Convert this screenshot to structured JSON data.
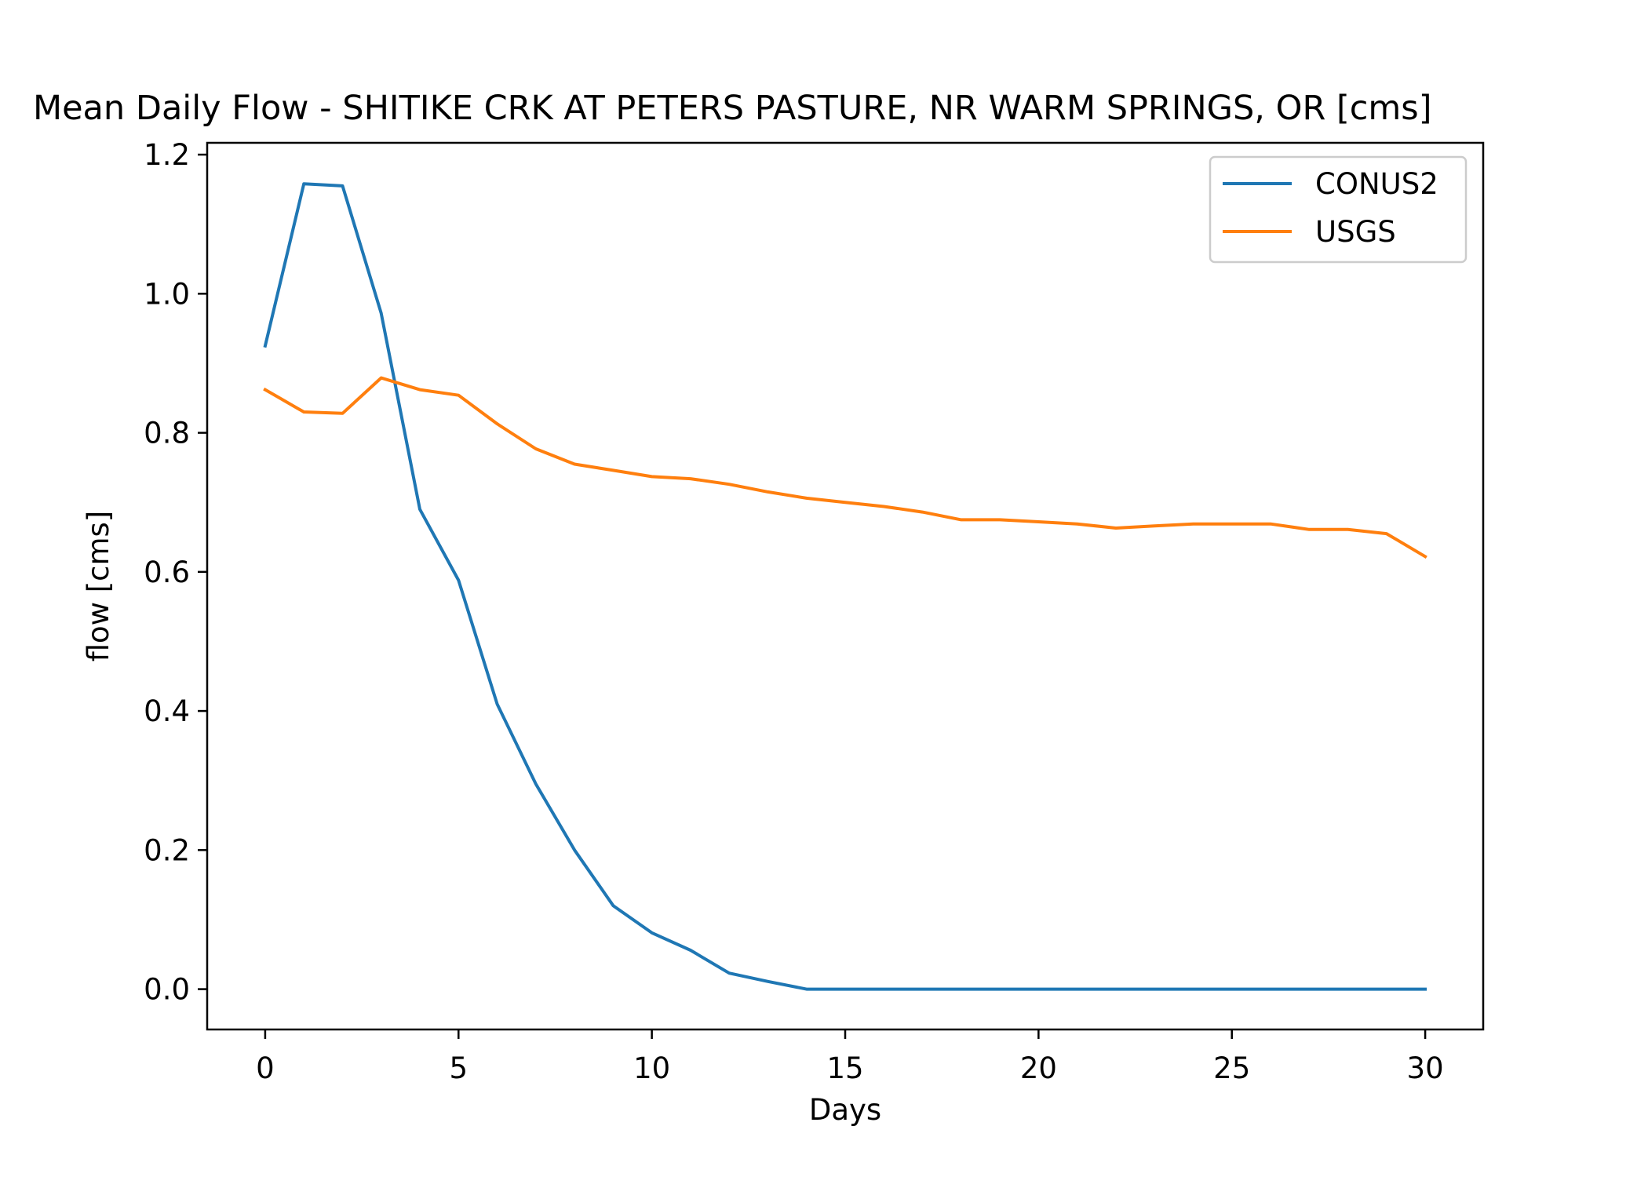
{
  "chart_data": {
    "type": "line",
    "title": "Mean Daily Flow - SHITIKE CRK AT PETERS PASTURE, NR WARM SPRINGS, OR [cms]",
    "xlabel": "Days",
    "ylabel": "flow [cms]",
    "xlim": [
      -1.5,
      31.5
    ],
    "ylim": [
      -0.058,
      1.217
    ],
    "xticks": [
      0,
      5,
      10,
      15,
      20,
      25,
      30
    ],
    "xtick_labels": [
      "0",
      "5",
      "10",
      "15",
      "20",
      "25",
      "30"
    ],
    "yticks": [
      0.0,
      0.2,
      0.4,
      0.6,
      0.8,
      1.0,
      1.2
    ],
    "ytick_labels": [
      "0.0",
      "0.2",
      "0.4",
      "0.6",
      "0.8",
      "1.0",
      "1.2"
    ],
    "grid": false,
    "legend_position": "upper-right",
    "x": [
      0,
      1,
      2,
      3,
      4,
      5,
      6,
      7,
      8,
      9,
      10,
      11,
      12,
      13,
      14,
      15,
      16,
      17,
      18,
      19,
      20,
      21,
      22,
      23,
      24,
      25,
      26,
      27,
      28,
      29,
      30
    ],
    "series": [
      {
        "name": "CONUS2",
        "color": "#1f77b4",
        "values": [
          0.925,
          1.158,
          1.155,
          0.972,
          0.69,
          0.588,
          0.41,
          0.295,
          0.2,
          0.12,
          0.081,
          0.056,
          0.023,
          0.011,
          0.0,
          0.0,
          0.0,
          0.0,
          0.0,
          0.0,
          0.0,
          0.0,
          0.0,
          0.0,
          0.0,
          0.0,
          0.0,
          0.0,
          0.0,
          0.0,
          0.0
        ]
      },
      {
        "name": "USGS",
        "color": "#ff7f0e",
        "values": [
          0.862,
          0.83,
          0.828,
          0.879,
          0.862,
          0.854,
          0.813,
          0.777,
          0.755,
          0.746,
          0.737,
          0.734,
          0.726,
          0.715,
          0.706,
          0.7,
          0.694,
          0.686,
          0.675,
          0.675,
          0.672,
          0.669,
          0.663,
          0.666,
          0.669,
          0.669,
          0.669,
          0.661,
          0.661,
          0.655,
          0.622
        ]
      }
    ]
  }
}
